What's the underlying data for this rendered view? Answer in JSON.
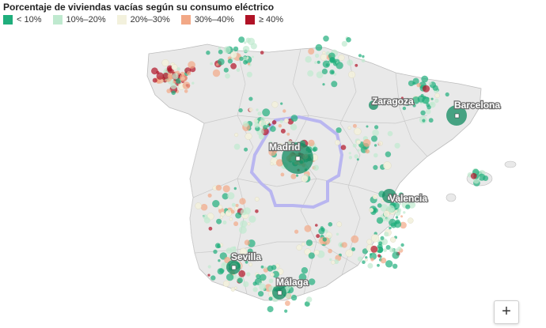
{
  "title": "Porcentaje de viviendas vacías según su consumo eléctrico",
  "legend": [
    {
      "label": "< 10%",
      "color": "#1fae7c"
    },
    {
      "label": "10%–20%",
      "color": "#bfe9cf"
    },
    {
      "label": "20%–30%",
      "color": "#f3f1dd"
    },
    {
      "label": "30%–40%",
      "color": "#f2a886"
    },
    {
      "label": "≥ 40%",
      "color": "#b01226"
    }
  ],
  "cities": [
    {
      "name": "Zaragoza"
    },
    {
      "name": "Barcelona"
    },
    {
      "name": "Madrid"
    },
    {
      "name": "Valencia"
    },
    {
      "name": "Sevilla"
    },
    {
      "name": "Málaga"
    }
  ],
  "zoom": {
    "plus_label": "+"
  }
}
